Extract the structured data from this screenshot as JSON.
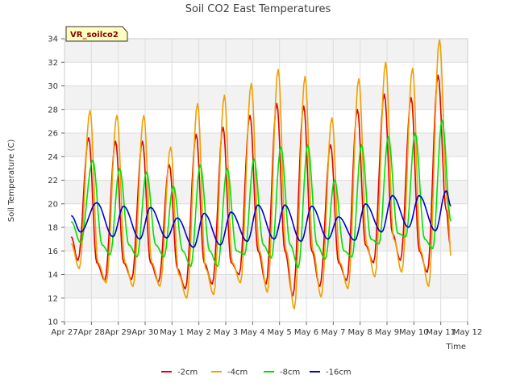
{
  "chart_data": {
    "type": "line",
    "title": "Soil CO2 East Temperatures",
    "xlabel": "Time",
    "ylabel": "Soil Temperature (C)",
    "site_label": "VR_soilco2",
    "ylim": [
      10,
      34
    ],
    "yticks": [
      10,
      12,
      14,
      16,
      18,
      20,
      22,
      24,
      26,
      28,
      30,
      32,
      34
    ],
    "xlim": [
      0,
      15
    ],
    "xticks": [
      {
        "value": 0,
        "label": "Apr 27"
      },
      {
        "value": 1,
        "label": "Apr 28"
      },
      {
        "value": 2,
        "label": "Apr 29"
      },
      {
        "value": 3,
        "label": "Apr 30"
      },
      {
        "value": 4,
        "label": "May 1"
      },
      {
        "value": 5,
        "label": "May 2"
      },
      {
        "value": 6,
        "label": "May 3"
      },
      {
        "value": 7,
        "label": "May 4"
      },
      {
        "value": 8,
        "label": "May 5"
      },
      {
        "value": 9,
        "label": "May 6"
      },
      {
        "value": 10,
        "label": "May 7"
      },
      {
        "value": 11,
        "label": "May 8"
      },
      {
        "value": 12,
        "label": "May 9"
      },
      {
        "value": 13,
        "label": "May 10"
      },
      {
        "value": 14,
        "label": "May 11"
      },
      {
        "value": 15,
        "label": "May 12"
      }
    ],
    "series": [
      {
        "name": "-2cm",
        "color": "#e00000",
        "x": [
          0.25,
          0.5,
          0.9,
          1.2,
          1.5,
          1.9,
          2.2,
          2.5,
          2.9,
          3.2,
          3.5,
          3.9,
          4.2,
          4.5,
          4.9,
          5.2,
          5.5,
          5.9,
          6.2,
          6.5,
          6.9,
          7.2,
          7.5,
          7.9,
          8.2,
          8.5,
          8.9,
          9.2,
          9.5,
          9.9,
          10.2,
          10.5,
          10.9,
          11.2,
          11.5,
          11.9,
          12.2,
          12.5,
          12.9,
          13.2,
          13.5,
          13.9,
          14.2,
          14.35
        ],
        "values": [
          17.2,
          15.2,
          25.6,
          15.0,
          13.5,
          25.3,
          15.0,
          13.6,
          25.3,
          15.0,
          13.4,
          23.3,
          14.5,
          12.8,
          25.9,
          15.0,
          13.2,
          26.5,
          15.0,
          14.0,
          27.5,
          16.0,
          13.2,
          28.5,
          16.0,
          12.2,
          28.3,
          16.0,
          13.0,
          25.0,
          15.0,
          13.5,
          28.0,
          16.5,
          15.0,
          29.3,
          17.5,
          15.2,
          29.0,
          16.0,
          14.2,
          30.9,
          19.5,
          16.6
        ]
      },
      {
        "name": "-4cm",
        "color": "#f0a000",
        "x": [
          0.25,
          0.55,
          0.95,
          1.25,
          1.55,
          1.95,
          2.25,
          2.55,
          2.95,
          3.25,
          3.55,
          3.95,
          4.25,
          4.55,
          4.95,
          5.25,
          5.55,
          5.95,
          6.25,
          6.55,
          6.95,
          7.25,
          7.55,
          7.95,
          8.25,
          8.55,
          8.95,
          9.25,
          9.55,
          9.95,
          10.25,
          10.55,
          10.95,
          11.25,
          11.55,
          11.95,
          12.25,
          12.55,
          12.95,
          13.25,
          13.55,
          13.95,
          14.25,
          14.38
        ],
        "values": [
          16.6,
          14.5,
          27.9,
          15.0,
          13.3,
          27.5,
          15.0,
          13.0,
          27.5,
          15.0,
          13.0,
          24.8,
          14.0,
          12.0,
          28.5,
          14.5,
          12.3,
          29.2,
          15.0,
          13.3,
          30.2,
          16.0,
          12.5,
          31.4,
          16.0,
          11.1,
          30.8,
          16.0,
          12.1,
          27.3,
          15.0,
          12.8,
          30.6,
          16.5,
          13.8,
          32.0,
          17.0,
          14.2,
          31.5,
          16.0,
          13.0,
          33.9,
          20.0,
          15.6
        ]
      },
      {
        "name": "-8cm",
        "color": "#00e000",
        "x": [
          0.25,
          0.6,
          1.05,
          1.4,
          1.7,
          2.05,
          2.4,
          2.7,
          3.05,
          3.4,
          3.7,
          4.05,
          4.4,
          4.7,
          5.05,
          5.4,
          5.7,
          6.05,
          6.4,
          6.7,
          7.05,
          7.4,
          7.7,
          8.05,
          8.4,
          8.7,
          9.05,
          9.4,
          9.7,
          10.05,
          10.4,
          10.7,
          11.05,
          11.4,
          11.7,
          12.05,
          12.4,
          12.7,
          13.05,
          13.4,
          13.7,
          14.05,
          14.38
        ],
        "values": [
          18.5,
          16.7,
          23.7,
          16.5,
          15.7,
          23.0,
          16.5,
          15.5,
          22.7,
          16.5,
          15.5,
          21.5,
          16.0,
          14.7,
          23.3,
          16.0,
          14.7,
          23.0,
          16.0,
          15.7,
          23.8,
          16.5,
          15.4,
          24.8,
          16.5,
          14.6,
          25.0,
          16.5,
          15.3,
          22.0,
          16.0,
          15.5,
          25.0,
          17.0,
          16.6,
          25.7,
          17.5,
          17.2,
          26.0,
          17.0,
          16.2,
          27.1,
          18.5
        ]
      },
      {
        "name": "-16cm",
        "color": "#0000cc",
        "x": [
          0.25,
          0.6,
          1.2,
          1.8,
          2.2,
          2.8,
          3.2,
          3.8,
          4.2,
          4.8,
          5.2,
          5.8,
          6.2,
          6.8,
          7.2,
          7.8,
          8.2,
          8.8,
          9.2,
          9.8,
          10.2,
          10.8,
          11.2,
          11.8,
          12.2,
          12.8,
          13.2,
          13.8,
          14.2,
          14.38
        ],
        "values": [
          19.0,
          17.6,
          20.1,
          17.2,
          19.8,
          17.0,
          19.7,
          17.1,
          18.8,
          16.3,
          19.2,
          16.5,
          19.3,
          16.8,
          19.9,
          17.0,
          19.9,
          16.8,
          19.8,
          17.0,
          18.9,
          16.9,
          20.0,
          17.6,
          20.7,
          18.0,
          20.7,
          17.7,
          21.1,
          19.8
        ]
      }
    ],
    "legend_position": "bottom-center",
    "grid": true
  }
}
